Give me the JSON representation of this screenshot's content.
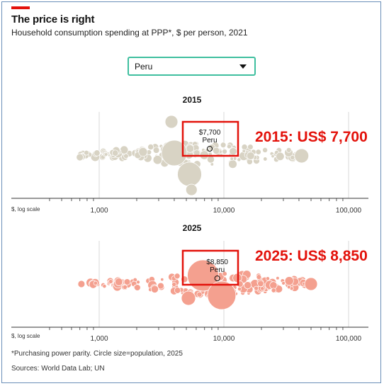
{
  "header": {
    "title": "The price is right",
    "subtitle": "Household consumption spending at PPP*, $ per person, 2021"
  },
  "country_select": {
    "value": "Peru"
  },
  "colors": {
    "accent": "#e3120b",
    "bubbles_2015": "#d8d3c4",
    "bubbles_2025": "#f4a08f",
    "dropdown_border": "#3fbf9f"
  },
  "chart_data": [
    {
      "type": "scatter",
      "title": "2015",
      "scale": "log",
      "axis_label": "$, log scale",
      "ticks": [
        "1,000",
        "10,000",
        "100,000"
      ],
      "tick_values": [
        1000,
        10000,
        100000
      ],
      "xlim": [
        300,
        160000
      ],
      "highlight": {
        "label": "$7,700",
        "country": "Peru",
        "value": 7700
      },
      "annotation": "2015: US$ 7,700"
    },
    {
      "type": "scatter",
      "title": "2025",
      "scale": "log",
      "axis_label": "$, log scale",
      "ticks": [
        "1,000",
        "10,000",
        "100,000"
      ],
      "tick_values": [
        1000,
        10000,
        100000
      ],
      "xlim": [
        300,
        160000
      ],
      "highlight": {
        "label": "$8,850",
        "country": "Peru",
        "value": 8850
      },
      "annotation": "2025: US$ 8,850"
    }
  ],
  "footer": {
    "footnote": "*Purchasing power parity. Circle size=population, 2025",
    "sources": "Sources: World Data Lab; UN"
  }
}
